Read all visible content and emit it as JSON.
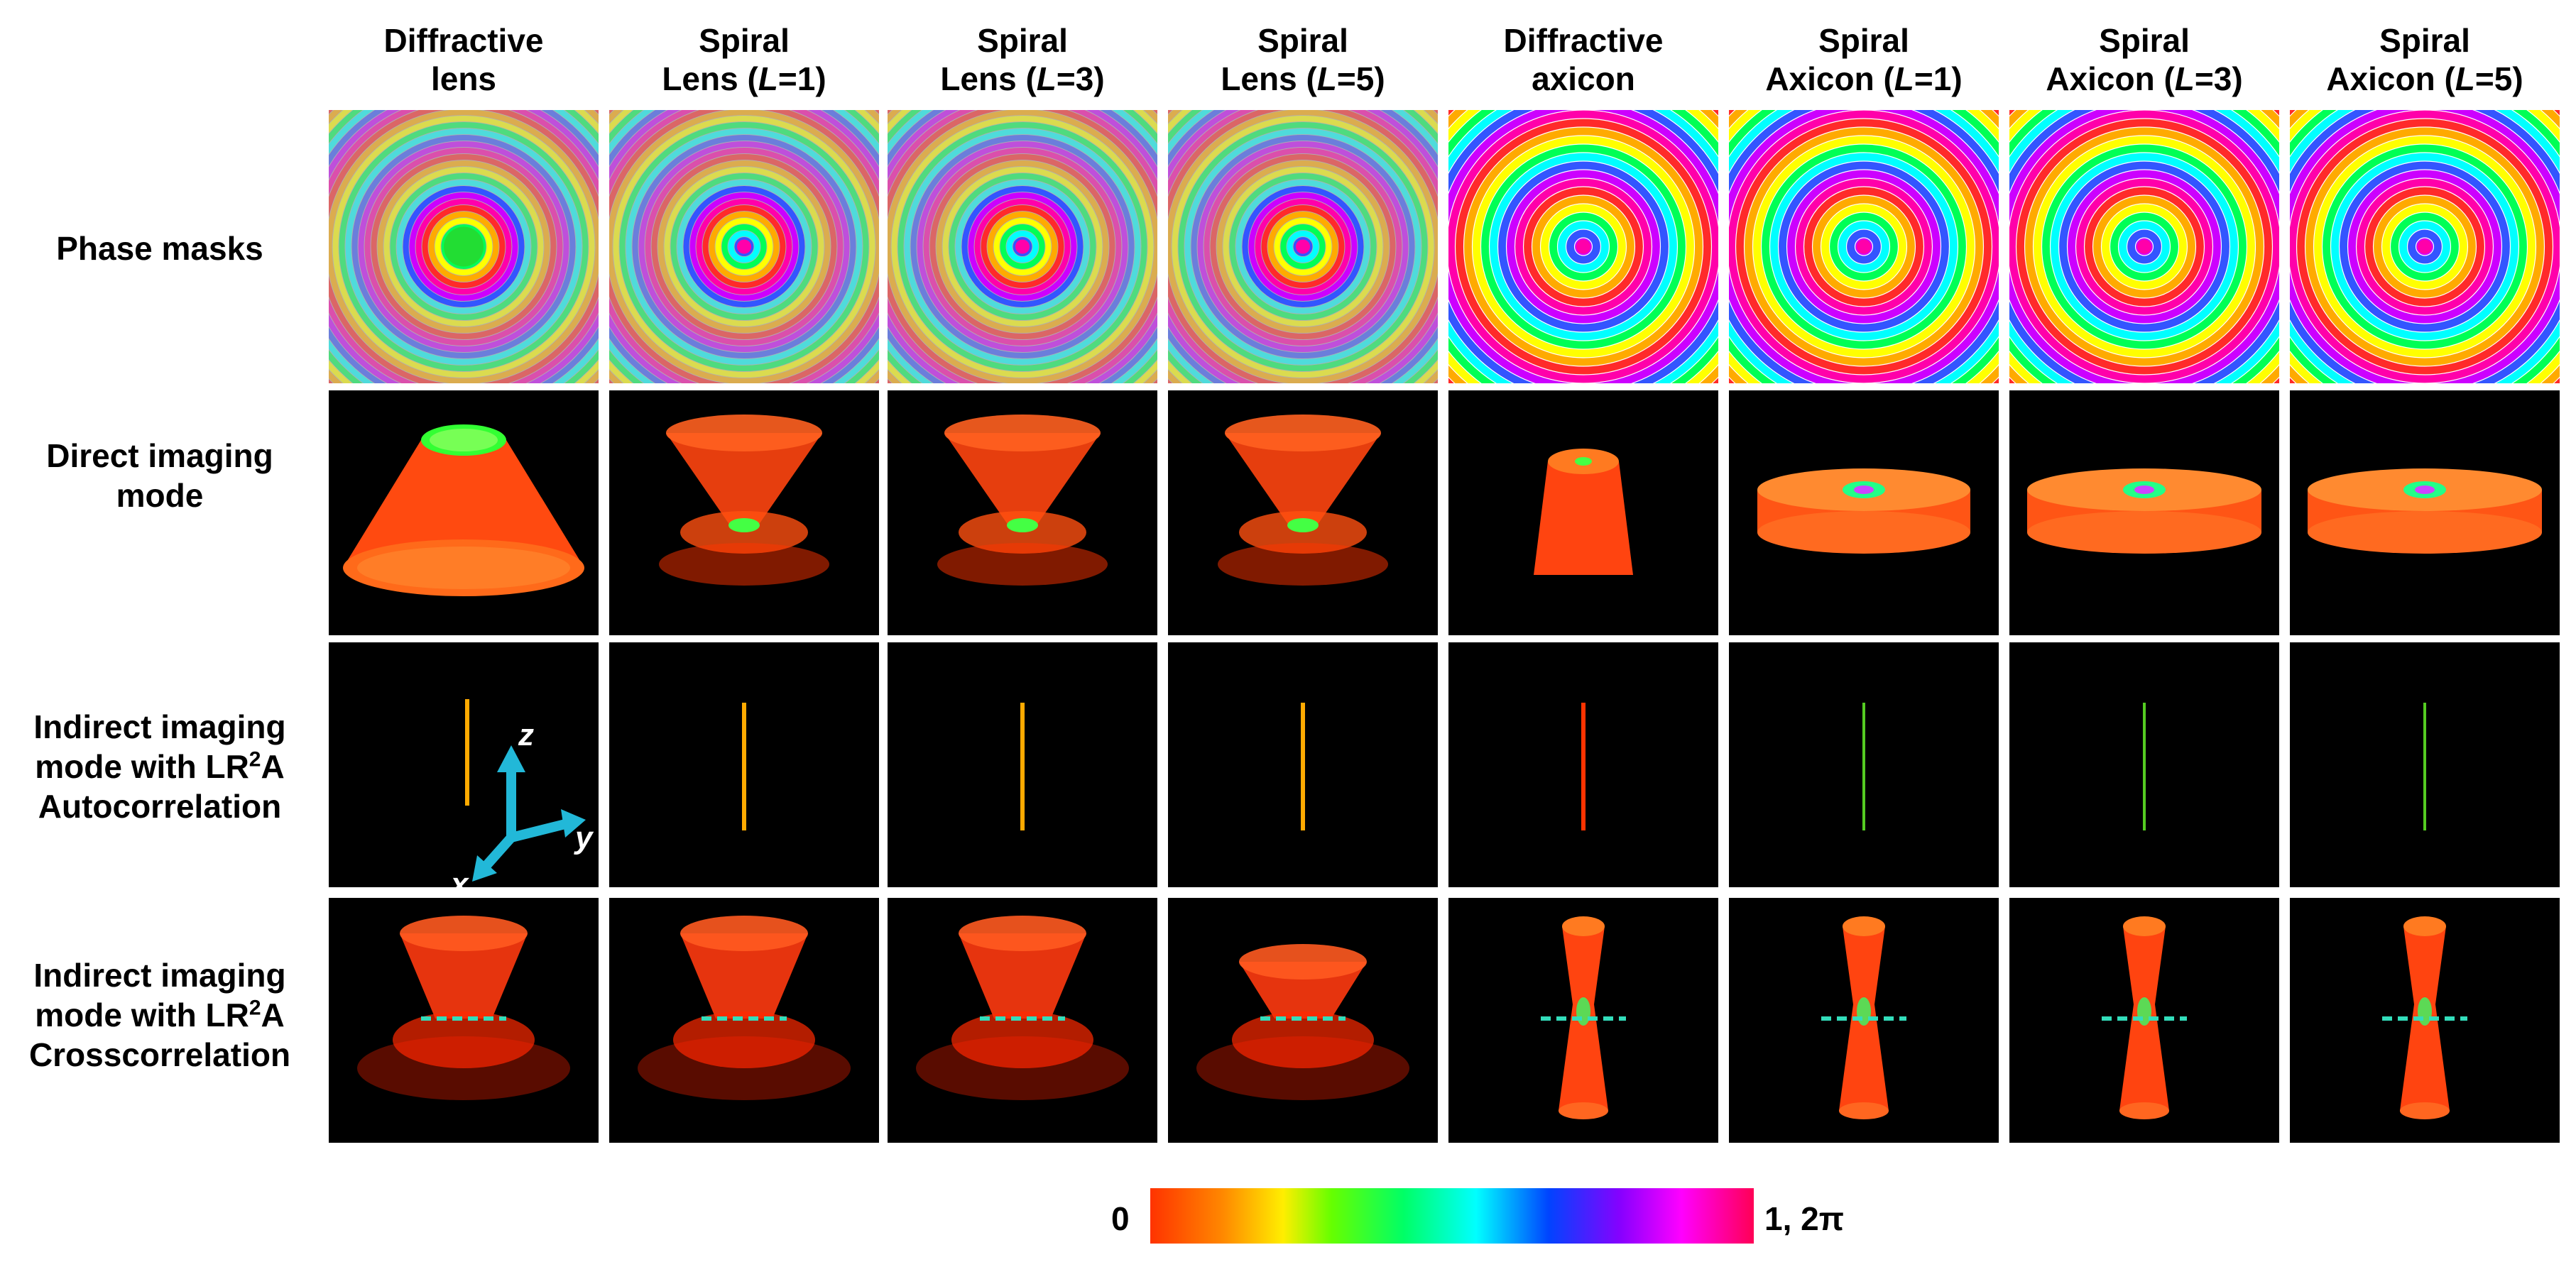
{
  "figure": {
    "columns": [
      {
        "line1": "Diffractive",
        "line2_pre": "lens",
        "L": "",
        "line2_post": ""
      },
      {
        "line1": "Spiral",
        "line2_pre": "Lens (",
        "L": "L",
        "line2_post": "=1)"
      },
      {
        "line1": "Spiral",
        "line2_pre": "Lens (",
        "L": "L",
        "line2_post": "=3)"
      },
      {
        "line1": "Spiral",
        "line2_pre": "Lens (",
        "L": "L",
        "line2_post": "=5)"
      },
      {
        "line1": "Diffractive",
        "line2_pre": "axicon",
        "L": "",
        "line2_post": ""
      },
      {
        "line1": "Spiral",
        "line2_pre": "Axicon (",
        "L": "L",
        "line2_post": "=1)"
      },
      {
        "line1": "Spiral",
        "line2_pre": "Axicon (",
        "L": "L",
        "line2_post": "=3)"
      },
      {
        "line1": "Spiral",
        "line2_pre": "Axicon (",
        "L": "L",
        "line2_post": "=5)"
      }
    ],
    "rows": {
      "phase_masks": {
        "line1": "Phase masks"
      },
      "direct": {
        "line1": "Direct imaging",
        "line2": "mode"
      },
      "auto": {
        "line1": "Indirect imaging",
        "line2_pre": "mode with LR",
        "sup": "2",
        "line2_post": "A",
        "line3": "Autocorrelation"
      },
      "cross": {
        "line1": "Indirect imaging",
        "line2_pre": "mode with LR",
        "sup": "2",
        "line2_post": "A",
        "line3": "Crosscorrelation"
      }
    },
    "axes_labels": {
      "z": "z",
      "y": "y",
      "x": "x"
    },
    "colorbar": {
      "min_label": "0",
      "max_label": "1, 2π"
    },
    "colors": {
      "axis_arrow": "#22b8d8",
      "background_panel": "#000000",
      "dashed_line": "#33ddbb"
    }
  }
}
